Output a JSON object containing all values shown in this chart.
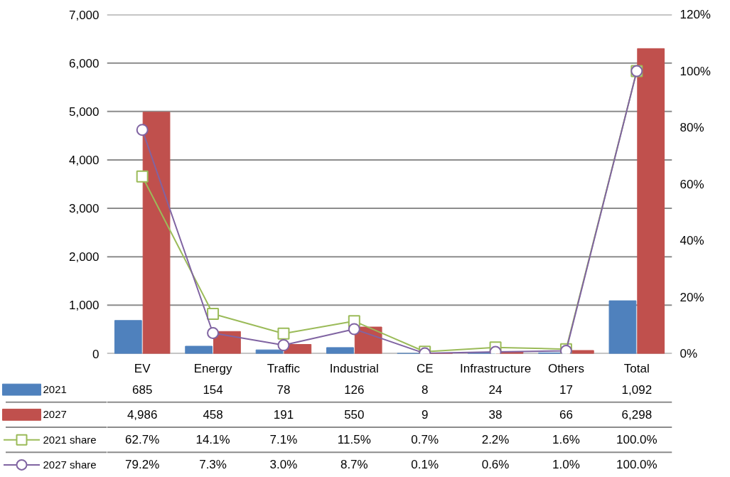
{
  "chart_data": {
    "type": "bar",
    "categories": [
      "EV",
      "Energy",
      "Traffic",
      "Industrial",
      "CE",
      "Infrastructure",
      "Others",
      "Total"
    ],
    "series": [
      {
        "name": "2021",
        "color": "#4f81bd",
        "values": [
          685,
          154,
          78,
          126,
          8,
          24,
          17,
          1092
        ],
        "value_labels": [
          "685",
          "154",
          "78",
          "126",
          "8",
          "24",
          "17",
          "1,092"
        ]
      },
      {
        "name": "2027",
        "color": "#c0504d",
        "values": [
          4986,
          458,
          191,
          550,
          9,
          38,
          66,
          6298
        ],
        "value_labels": [
          "4,986",
          "458",
          "191",
          "550",
          "9",
          "38",
          "66",
          "6,298"
        ]
      },
      {
        "name": "2021 share",
        "type": "line",
        "axis": "y2",
        "marker": "square",
        "color": "#9bbb59",
        "values": [
          62.7,
          14.1,
          7.1,
          11.5,
          0.7,
          2.2,
          1.6,
          100.0
        ],
        "value_labels": [
          "62.7%",
          "14.1%",
          "7.1%",
          "11.5%",
          "0.7%",
          "2.2%",
          "1.6%",
          "100.0%"
        ]
      },
      {
        "name": "2027 share",
        "type": "line",
        "axis": "y2",
        "marker": "circle",
        "color": "#8064a2",
        "values": [
          79.2,
          7.3,
          3.0,
          8.7,
          0.1,
          0.6,
          1.0,
          100.0
        ],
        "value_labels": [
          "79.2%",
          "7.3%",
          "3.0%",
          "8.7%",
          "0.1%",
          "0.6%",
          "1.0%",
          "100.0%"
        ]
      }
    ],
    "ylim": [
      0,
      7000
    ],
    "yticks": [
      0,
      {
        "value": 1000,
        "label": "1,000"
      },
      {
        "value": 2000,
        "label": "2,000"
      },
      {
        "value": 3000,
        "label": "3,000"
      },
      {
        "value": 4000,
        "label": "4,000"
      },
      {
        "value": 5000,
        "label": "5,000"
      },
      {
        "value": 6000,
        "label": "6,000"
      },
      {
        "value": 7000,
        "label": "7,000"
      }
    ],
    "y2lim": [
      0,
      120
    ],
    "y2ticks": [
      {
        "value": 0,
        "label": "0%"
      },
      {
        "value": 20,
        "label": "20%"
      },
      {
        "value": 40,
        "label": "40%"
      },
      {
        "value": 60,
        "label": "60%"
      },
      {
        "value": 80,
        "label": "80%"
      },
      {
        "value": 100,
        "label": "100%"
      },
      {
        "value": 120,
        "label": "120%"
      }
    ],
    "grid": "y",
    "legend": "bottom"
  }
}
